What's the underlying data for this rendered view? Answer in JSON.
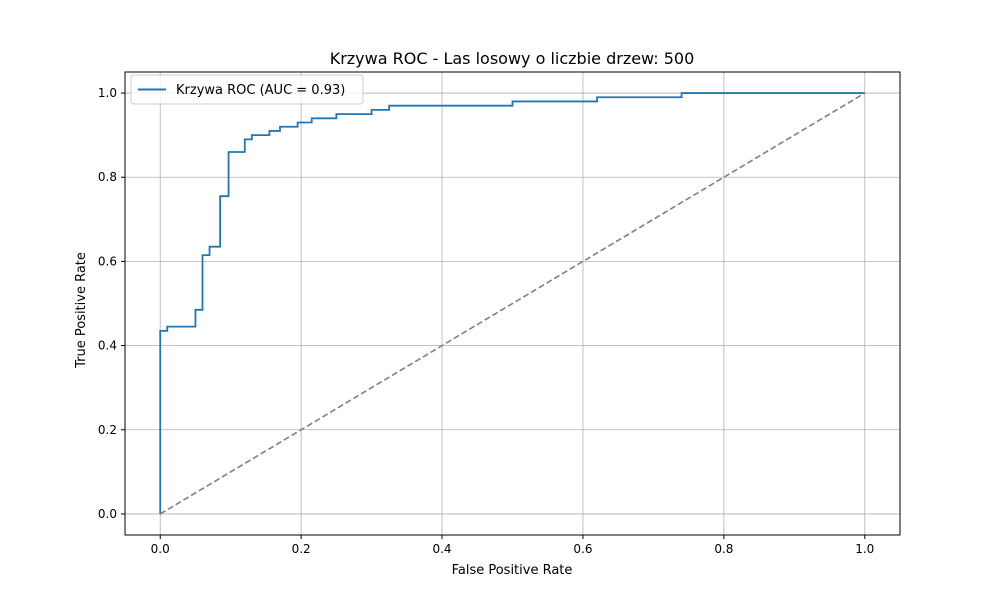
{
  "chart_data": {
    "type": "line",
    "title": "Krzywa ROC - Las losowy o liczbie drzew: 500",
    "xlabel": "False Positive Rate",
    "ylabel": "True Positive Rate",
    "xlim": [
      -0.05,
      1.05
    ],
    "ylim": [
      -0.05,
      1.05
    ],
    "grid": true,
    "legend_position": "upper-left",
    "x_ticks": [
      0.0,
      0.2,
      0.4,
      0.6,
      0.8,
      1.0
    ],
    "y_ticks": [
      0.0,
      0.2,
      0.4,
      0.6,
      0.8,
      1.0
    ],
    "x_tick_labels": [
      "0.0",
      "0.2",
      "0.4",
      "0.6",
      "0.8",
      "1.0"
    ],
    "y_tick_labels": [
      "0.0",
      "0.2",
      "0.4",
      "0.6",
      "0.8",
      "1.0"
    ],
    "series": [
      {
        "name": "Krzywa ROC (AUC = 0.93)",
        "color": "#1f77b4",
        "style": "solid",
        "x": [
          0.0,
          0.0,
          0.01,
          0.01,
          0.05,
          0.05,
          0.06,
          0.06,
          0.07,
          0.07,
          0.085,
          0.085,
          0.097,
          0.097,
          0.12,
          0.12,
          0.13,
          0.13,
          0.155,
          0.155,
          0.17,
          0.17,
          0.195,
          0.195,
          0.215,
          0.215,
          0.25,
          0.25,
          0.3,
          0.3,
          0.325,
          0.325,
          0.5,
          0.5,
          0.62,
          0.62,
          0.74,
          0.74,
          1.0
        ],
        "y": [
          0.0,
          0.435,
          0.435,
          0.445,
          0.445,
          0.485,
          0.485,
          0.615,
          0.615,
          0.635,
          0.635,
          0.755,
          0.755,
          0.86,
          0.86,
          0.89,
          0.89,
          0.9,
          0.9,
          0.91,
          0.91,
          0.92,
          0.92,
          0.93,
          0.93,
          0.94,
          0.94,
          0.95,
          0.95,
          0.96,
          0.96,
          0.97,
          0.97,
          0.98,
          0.98,
          0.99,
          0.99,
          1.0,
          1.0
        ]
      },
      {
        "color": "#808080",
        "style": "dashed",
        "x": [
          0.0,
          1.0
        ],
        "y": [
          0.0,
          1.0
        ]
      }
    ]
  }
}
